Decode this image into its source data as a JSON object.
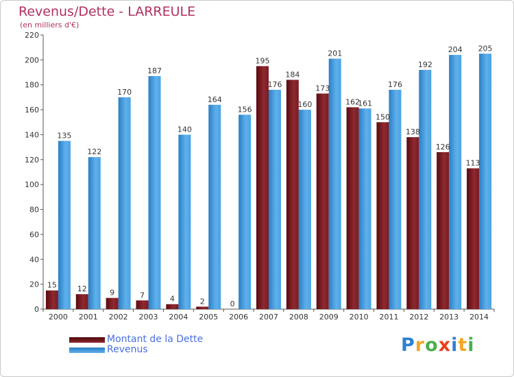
{
  "chart_data": {
    "type": "bar",
    "title": "Revenus/Dette - LARREULE",
    "subtitle": "(en milliers d'€)",
    "categories": [
      "2000",
      "2001",
      "2002",
      "2003",
      "2004",
      "2005",
      "2006",
      "2007",
      "2008",
      "2009",
      "2010",
      "2011",
      "2012",
      "2013",
      "2014"
    ],
    "series": [
      {
        "name": "Montant de la Dette",
        "color": "#7a1a1f",
        "values": [
          15,
          12,
          9,
          7,
          4,
          2,
          0,
          195,
          184,
          173,
          162,
          150,
          138,
          126,
          113
        ]
      },
      {
        "name": "Revenus",
        "color": "#3a94dc",
        "values": [
          135,
          122,
          170,
          187,
          140,
          164,
          156,
          176,
          160,
          201,
          161,
          176,
          192,
          204,
          205
        ]
      }
    ],
    "ylim": [
      0,
      220
    ],
    "yticks": [
      0,
      20,
      40,
      60,
      80,
      100,
      120,
      140,
      160,
      180,
      200,
      220
    ],
    "grid": false,
    "legend_position": "bottom-left"
  },
  "legend": [
    {
      "label": "Montant de la Dette",
      "color": "#5c0a10"
    },
    {
      "label": "Revenus",
      "color": "#3a94dc"
    }
  ],
  "logo": {
    "letters": [
      "P",
      "r",
      "o",
      "x",
      "i",
      "t",
      "i"
    ],
    "colors": [
      "#2e7fd0",
      "#f5a623",
      "#4caf50",
      "#e8401c",
      "#2e7fd0",
      "#f5a623",
      "#4caf50"
    ]
  }
}
